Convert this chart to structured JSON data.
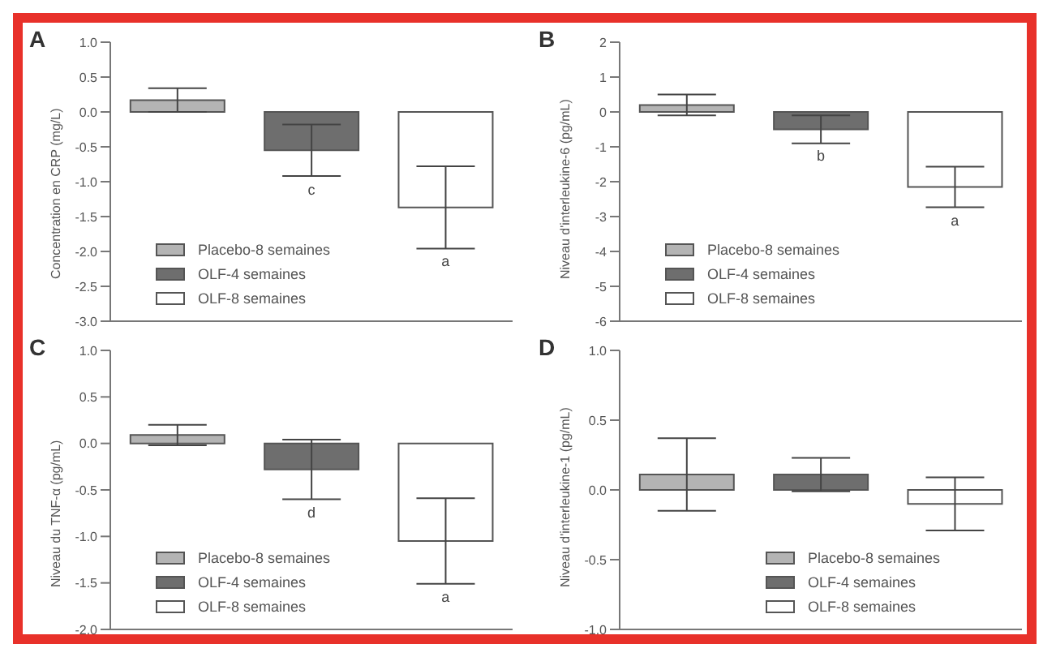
{
  "chart_data": [
    {
      "type": "bar",
      "title": "A",
      "ylabel": "Concentration en CRP (mg/L)",
      "categories": [
        null,
        null,
        null
      ],
      "ylim": [
        -3,
        1
      ],
      "yticks": [
        {
          "value": 1,
          "label": "1.0"
        },
        {
          "value": 0.5,
          "label": "0.5"
        },
        {
          "value": 0,
          "label": "0.0"
        },
        {
          "value": -0.5,
          "label": "-0.5"
        },
        {
          "value": -1,
          "label": "-1.0"
        },
        {
          "value": -1.5,
          "label": "-1.5"
        },
        {
          "value": -2,
          "label": "-2.0"
        },
        {
          "value": -2.5,
          "label": "-2.5"
        },
        {
          "value": -3,
          "label": "-3.0"
        }
      ],
      "legend": "bottom left",
      "tick_labels": "y",
      "series": [
        {
          "name": "Placebo-8 semaines",
          "color": "#b4b4b4",
          "values": [
            0.17,
            null,
            null
          ],
          "errors": [
            0.17,
            null,
            null
          ]
        },
        {
          "name": "OLF-4 semaines",
          "color": "#6e6e6e",
          "values": [
            null,
            -0.55,
            null
          ],
          "errors": [
            null,
            0.37,
            null
          ]
        },
        {
          "name": "OLF-8 semaines",
          "color": "#ffffff",
          "values": [
            null,
            null,
            -1.37
          ],
          "errors": [
            null,
            null,
            0.59
          ]
        }
      ],
      "annotations": [
        "c",
        "a"
      ]
    },
    {
      "type": "bar",
      "title": "B",
      "ylabel": "Niveau d'interleukine-6 (pg/mL)",
      "categories": [
        null,
        null,
        null
      ],
      "ylim": [
        -6,
        2
      ],
      "yticks": [
        2,
        1,
        0,
        -1,
        -2,
        -3,
        -4,
        -5,
        -6
      ],
      "legend": "bottom left",
      "tick_labels": "y",
      "series": [
        {
          "name": "Placebo-8 semaines",
          "color": "#b4b4b4",
          "values": [
            0.2,
            null,
            null
          ],
          "errors": [
            0.3,
            null,
            null
          ]
        },
        {
          "name": "OLF-4 semaines",
          "color": "#6e6e6e",
          "values": [
            null,
            -0.5,
            null
          ],
          "errors": [
            null,
            0.4,
            null
          ]
        },
        {
          "name": "OLF-8 semaines",
          "color": "#ffffff",
          "values": [
            null,
            null,
            -2.15
          ],
          "errors": [
            null,
            null,
            0.58
          ]
        }
      ],
      "annotations": [
        "b",
        "a"
      ]
    },
    {
      "type": "bar",
      "title": "C",
      "ylabel": "Niveau du TNF-α (pg/mL)",
      "categories": [
        null,
        null,
        null
      ],
      "ylim": [
        -2,
        1
      ],
      "yticks": [
        {
          "value": 1,
          "label": "1.0"
        },
        {
          "value": 0.5,
          "label": "0.5"
        },
        {
          "value": 0,
          "label": "0.0"
        },
        {
          "value": -0.5,
          "label": "-0.5"
        },
        {
          "value": -1,
          "label": "-1.0"
        },
        {
          "value": -1.5,
          "label": "-1.5"
        },
        {
          "value": -2,
          "label": "-2.0"
        }
      ],
      "legend": "bottom left",
      "tick_labels": "y",
      "series": [
        {
          "name": "Placebo-8 semaines",
          "color": "#b4b4b4",
          "values": [
            0.09,
            null,
            null
          ],
          "errors": [
            0.11,
            null,
            null
          ]
        },
        {
          "name": "OLF-4 semaines",
          "color": "#6e6e6e",
          "values": [
            null,
            -0.28,
            null
          ],
          "errors": [
            null,
            0.32,
            null
          ]
        },
        {
          "name": "OLF-8 semaines",
          "color": "#ffffff",
          "values": [
            null,
            null,
            -1.05
          ],
          "errors": [
            null,
            null,
            0.46
          ]
        }
      ],
      "annotations": [
        "d",
        "a"
      ]
    },
    {
      "type": "bar",
      "title": "D",
      "ylabel": "Niveau d'interleukine-1 (pg/mL)",
      "categories": [
        null,
        null,
        null
      ],
      "ylim": [
        -1,
        1
      ],
      "yticks": [
        {
          "value": 1,
          "label": "1.0"
        },
        {
          "value": 0.5,
          "label": "0.5"
        },
        {
          "value": 0,
          "label": "0.0"
        },
        {
          "value": -0.5,
          "label": "-0.5"
        },
        {
          "value": -1,
          "label": "-1.0"
        }
      ],
      "legend": "bottom",
      "tick_labels": "y",
      "series": [
        {
          "name": "Placebo-8 semaines",
          "color": "#b4b4b4",
          "values": [
            0.11,
            null,
            null
          ],
          "errors": [
            0.26,
            null,
            null
          ]
        },
        {
          "name": "OLF-4 semaines",
          "color": "#6e6e6e",
          "values": [
            null,
            0.11,
            null
          ],
          "errors": [
            null,
            0.12,
            null
          ]
        },
        {
          "name": "OLF-8 semaines",
          "color": "#ffffff",
          "values": [
            null,
            null,
            -0.1
          ],
          "errors": [
            null,
            null,
            0.19
          ]
        }
      ]
    }
  ]
}
